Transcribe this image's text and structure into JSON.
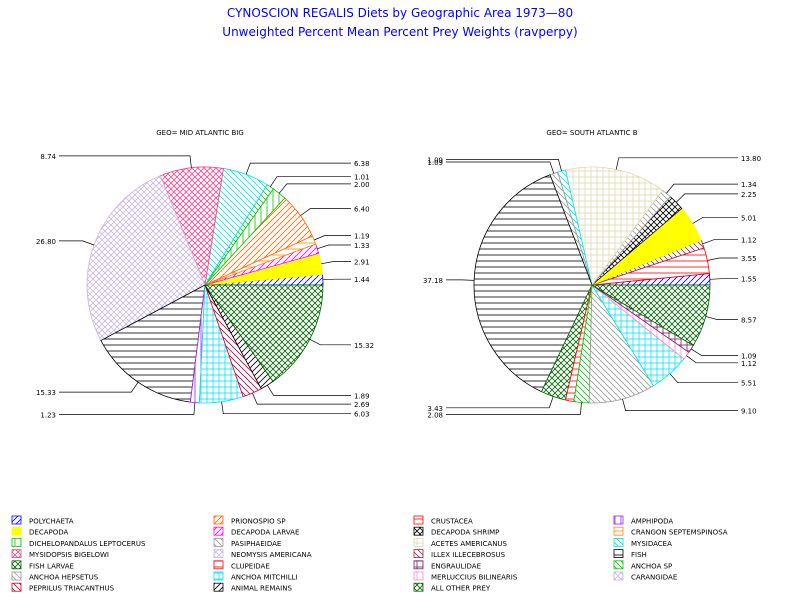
{
  "title": "CYNOSCION REGALIS Diets by Geographic Area 1973—80",
  "subtitle": "Unweighted Percent Mean Percent Prey  Weights (ravperpy)",
  "title_color": "#0000ff",
  "legend_items": [
    {
      "label": "POLYCHAETA",
      "color": "#0000ff",
      "pattern": "fdiag"
    },
    {
      "label": "PRIONOSPIO SP",
      "color": "#ff6600",
      "pattern": "fdiag"
    },
    {
      "label": "CRUSTACEA",
      "color": "#ff0000",
      "pattern": "hline"
    },
    {
      "label": "AMPHIPODA",
      "color": "#a020f0",
      "pattern": "vline"
    },
    {
      "label": "DECAPODA",
      "color": "#ffff00",
      "pattern": "solid"
    },
    {
      "label": "DECAPODA LARVAE",
      "color": "#ff00ff",
      "pattern": "fdiag"
    },
    {
      "label": "DECAPODA SHRIMP",
      "color": "#000000",
      "pattern": "xhatch"
    },
    {
      "label": "CRANGON SEPTEMSPINOSA",
      "color": "#ff8c00",
      "pattern": "hline"
    },
    {
      "label": "DICHELOPANDALUS LEPTOCERUS",
      "color": "#00cc00",
      "pattern": "vline"
    },
    {
      "label": "PASIPHAEIDAE",
      "color": "#999999",
      "pattern": "bdiag"
    },
    {
      "label": "ACETES AMERICANUS",
      "color": "#e0d8b0",
      "pattern": "grid"
    },
    {
      "label": "MYSIDACEA",
      "color": "#00e5ee",
      "pattern": "bdiag"
    },
    {
      "label": "MYSIDOPSIS BIGELOWI",
      "color": "#ff4488",
      "pattern": "xhatch"
    },
    {
      "label": "NEOMYSIS AMERICANA",
      "color": "#c8b8e0",
      "pattern": "xhatch"
    },
    {
      "label": "ILLEX ILLECEBROSUS",
      "color": "#aa2244",
      "pattern": "bdiag"
    },
    {
      "label": "FISH",
      "color": "#000000",
      "pattern": "hline"
    },
    {
      "label": "FISH LARVAE",
      "color": "#006600",
      "pattern": "xhatch"
    },
    {
      "label": "CLUPEIDAE",
      "color": "#ff0000",
      "pattern": "hline"
    },
    {
      "label": "ENGRAULIDAE",
      "color": "#7a1f70",
      "pattern": "grid"
    },
    {
      "label": "ANCHOA SP",
      "color": "#00cc00",
      "pattern": "bdiag"
    },
    {
      "label": "ANCHOA HEPSETUS",
      "color": "#999999",
      "pattern": "bdiag"
    },
    {
      "label": "ANCHOA MITCHILLI",
      "color": "#00e5ee",
      "pattern": "grid"
    },
    {
      "label": "MERLUCCIUS BILINEARIS",
      "color": "#ff88cc",
      "pattern": "vline"
    },
    {
      "label": "CARANGIDAE",
      "color": "#c8b8e0",
      "pattern": "xhatch"
    },
    {
      "label": "PEPRILUS TRIACANTHUS",
      "color": "#cc0033",
      "pattern": "bdiag"
    },
    {
      "label": "ANIMAL REMAINS",
      "color": "#000000",
      "pattern": "fdiag"
    },
    {
      "label": "ALL OTHER PREY",
      "color": "#006600",
      "pattern": "xhatch"
    }
  ],
  "chart_data": [
    {
      "type": "pie",
      "title": "GEO= MID ATLANTIC BIG",
      "slices": [
        {
          "category": "POLYCHAETA",
          "value": 1.44,
          "label": "1.44"
        },
        {
          "category": "ANCHOA MITCHILLI",
          "value": 0.0,
          "label": ""
        },
        {
          "category": "DECAPODA",
          "value": 2.91,
          "label": "2.91"
        },
        {
          "category": "DECAPODA LARVAE",
          "value": 1.33,
          "label": "1.33"
        },
        {
          "category": "CRANGON SEPTEMSPINOSA",
          "value": 1.19,
          "label": "1.19"
        },
        {
          "category": "PRIONOSPIO SP",
          "value": 6.4,
          "label": "6.40"
        },
        {
          "category": "DICHELOPANDALUS LEPTOCERUS",
          "value": 2.0,
          "label": "2.00"
        },
        {
          "category": "ANCHOA SP",
          "value": 1.01,
          "label": "1.01"
        },
        {
          "category": "MYSIDACEA",
          "value": 6.38,
          "label": "6.38"
        },
        {
          "category": "MYSIDOPSIS BIGELOWI",
          "value": 8.74,
          "label": "8.74"
        },
        {
          "category": "NEOMYSIS AMERICANA",
          "value": 26.8,
          "label": "26.80"
        },
        {
          "category": "FISH",
          "value": 15.33,
          "label": "15.33"
        },
        {
          "category": "AMPHIPODA",
          "value": 1.23,
          "label": "1.23"
        },
        {
          "category": "ANCHOA MITCHILLI",
          "value": 6.03,
          "label": "6.03"
        },
        {
          "category": "PEPRILUS TRIACANTHUS",
          "value": 2.69,
          "label": "2.69"
        },
        {
          "category": "ANIMAL REMAINS",
          "value": 1.89,
          "label": "1.89"
        },
        {
          "category": "ALL OTHER PREY",
          "value": 15.32,
          "label": "15.32"
        }
      ]
    },
    {
      "type": "pie",
      "title": "GEO= SOUTH ATLANTIC B",
      "slices": [
        {
          "category": "POLYCHAETA",
          "value": 1.55,
          "label": "1.55"
        },
        {
          "category": "CRUSTACEA",
          "value": 3.55,
          "label": "3.55"
        },
        {
          "category": "ILLEX ILLECEBROSUS",
          "value": 1.12,
          "label": "1.12"
        },
        {
          "category": "DECAPODA",
          "value": 5.01,
          "label": "5.01"
        },
        {
          "category": "DECAPODA SHRIMP",
          "value": 2.25,
          "label": "2.25"
        },
        {
          "category": "PASIPHAEIDAE",
          "value": 1.34,
          "label": "1.34"
        },
        {
          "category": "ACETES AMERICANUS",
          "value": 13.8,
          "label": "13.80"
        },
        {
          "category": "MYSIDACEA",
          "value": 1.09,
          "label": "1.09"
        },
        {
          "category": "ANCHOA HEPSETUS",
          "value": 1.09,
          "label": "1.09"
        },
        {
          "category": "FISH",
          "value": 37.18,
          "label": "37.18"
        },
        {
          "category": "FISH LARVAE",
          "value": 3.43,
          "label": "3.43"
        },
        {
          "category": "CLUPEIDAE",
          "value": 1.15,
          "label": ""
        },
        {
          "category": "ANCHOA SP",
          "value": 2.08,
          "label": "2.08"
        },
        {
          "category": "ANCHOA HEPSETUS",
          "value": 9.1,
          "label": "9.10"
        },
        {
          "category": "ANCHOA MITCHILLI",
          "value": 5.51,
          "label": "5.51"
        },
        {
          "category": "MERLUCCIUS BILINEARIS",
          "value": 1.12,
          "label": "1.12"
        },
        {
          "category": "ENGRAULIDAE",
          "value": 1.09,
          "label": "1.09"
        },
        {
          "category": "ALL OTHER PREY",
          "value": 8.57,
          "label": "8.57"
        }
      ]
    }
  ]
}
